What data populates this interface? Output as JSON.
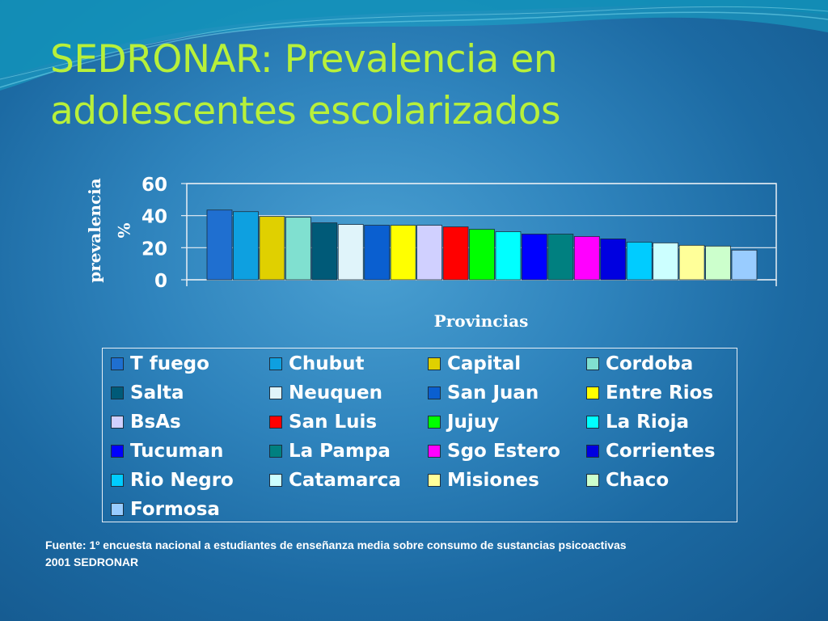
{
  "slide": {
    "title_line1": "SEDRONAR: Prevalencia en",
    "title_line2": "adolescentes escolarizados",
    "source_line1": "Fuente: 1º encuesta nacional a estudiantes de enseñanza media sobre consumo de sustancias psicoactivas",
    "source_line2": "2001 SEDRONAR",
    "colors": {
      "title": "#b8f03a",
      "background": "#2f84bd"
    }
  },
  "chart_data": {
    "type": "bar",
    "xlabel": "Provincias",
    "ylabel": "prevalencia %",
    "ylim": [
      0,
      60
    ],
    "yticks": [
      0,
      20,
      40,
      60
    ],
    "grid": "horizontal",
    "legend_position": "bottom",
    "series": [
      {
        "name": "T fuego",
        "value": 43.5,
        "color": "#1f6fd0"
      },
      {
        "name": "Chubut",
        "value": 42.5,
        "color": "#0ea0e0"
      },
      {
        "name": "Capital",
        "value": 39.5,
        "color": "#e0d000"
      },
      {
        "name": "Cordoba",
        "value": 39.0,
        "color": "#80e0d0"
      },
      {
        "name": "Salta",
        "value": 35.5,
        "color": "#005a78"
      },
      {
        "name": "Neuquen",
        "value": 34.5,
        "color": "#e0f4fa"
      },
      {
        "name": "San Juan",
        "value": 34.0,
        "color": "#0a5fd0"
      },
      {
        "name": "Entre Rios",
        "value": 34.0,
        "color": "#ffff00"
      },
      {
        "name": "BsAs",
        "value": 34.0,
        "color": "#d0d0ff"
      },
      {
        "name": "San Luis",
        "value": 33.0,
        "color": "#ff0000"
      },
      {
        "name": "Jujuy",
        "value": 31.5,
        "color": "#00ff00"
      },
      {
        "name": "La Rioja",
        "value": 30.0,
        "color": "#00ffff"
      },
      {
        "name": "Tucuman",
        "value": 28.5,
        "color": "#0000ff"
      },
      {
        "name": "La Pampa",
        "value": 28.5,
        "color": "#008080"
      },
      {
        "name": "Sgo Estero",
        "value": 27.0,
        "color": "#ff00ff"
      },
      {
        "name": "Corrientes",
        "value": 25.5,
        "color": "#0000e0"
      },
      {
        "name": "Rio Negro",
        "value": 23.5,
        "color": "#00ccff"
      },
      {
        "name": "Catamarca",
        "value": 23.0,
        "color": "#ccffff"
      },
      {
        "name": "Misiones",
        "value": 21.5,
        "color": "#ffff99"
      },
      {
        "name": "Chaco",
        "value": 21.0,
        "color": "#ccffcc"
      },
      {
        "name": "Formosa",
        "value": 18.5,
        "color": "#99ccff"
      }
    ]
  }
}
